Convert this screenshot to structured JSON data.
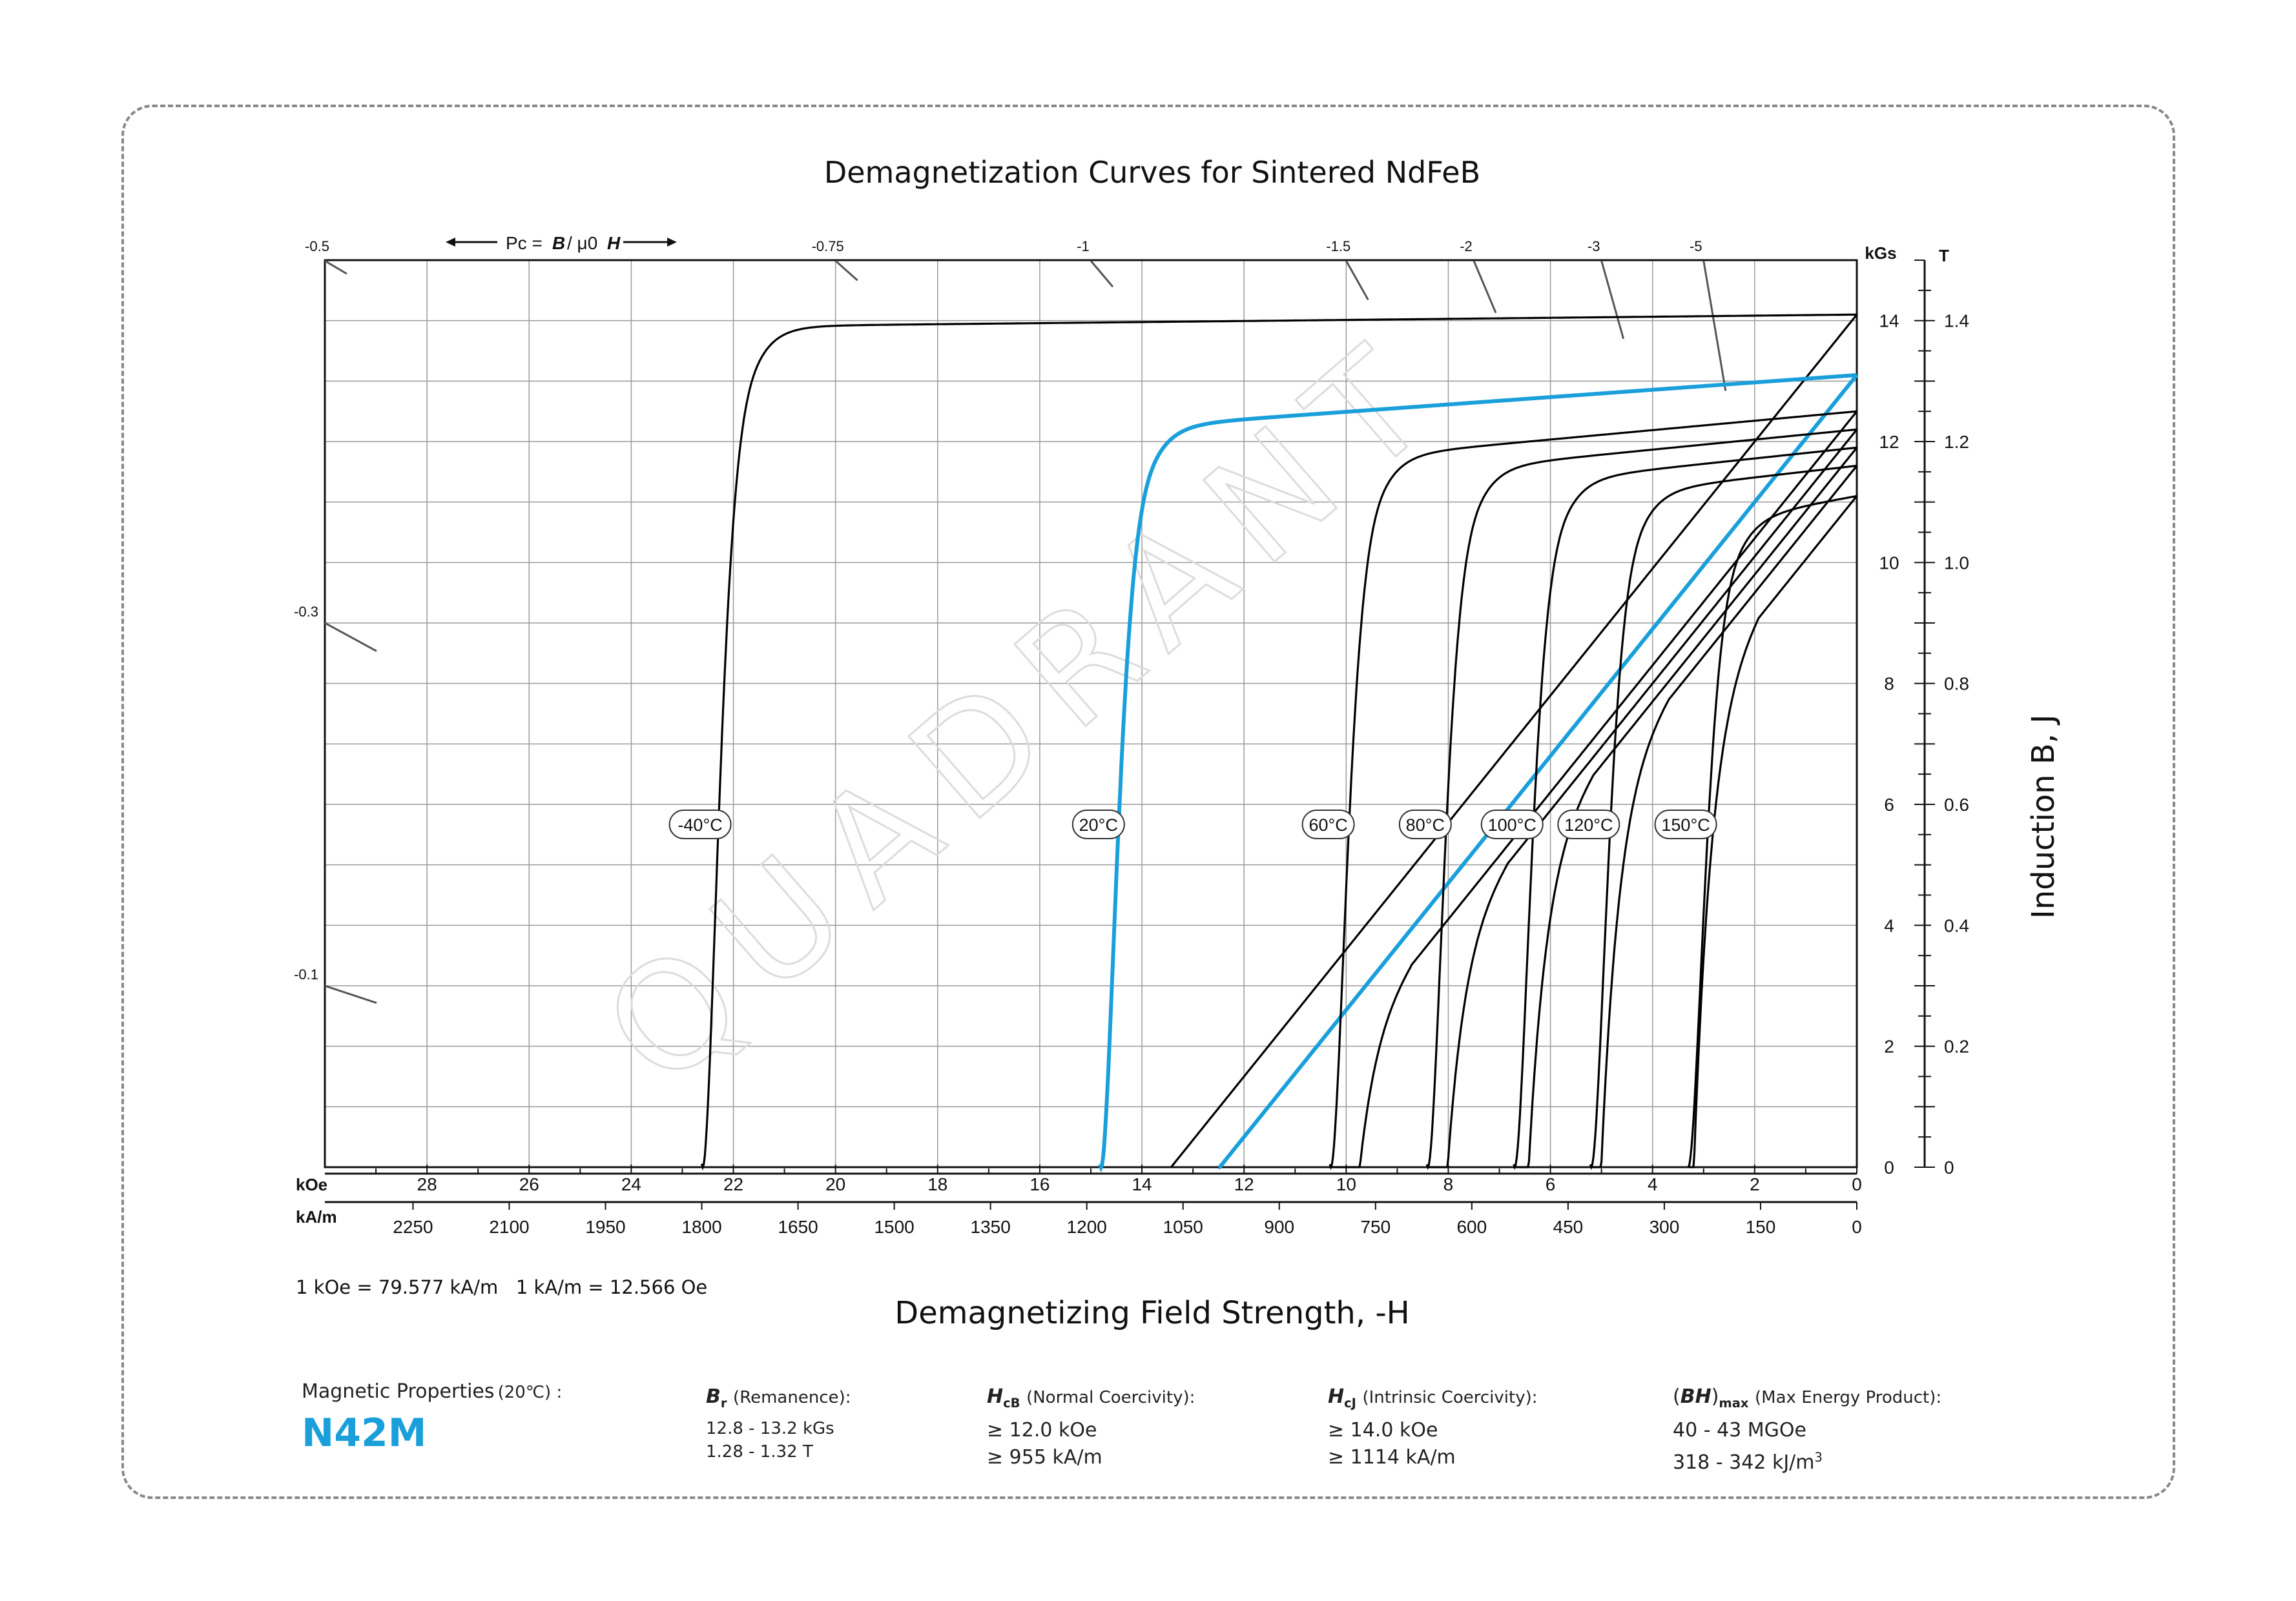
{
  "chart_data": {
    "type": "line",
    "title": "Demagnetization Curves for Sintered NdFeB",
    "xlabel": "Demagnetizing Field Strength, -H",
    "ylabel": "Induction  B,  J",
    "x_unit_primary": "kOe",
    "x_unit_secondary": "kA/m",
    "y_unit_primary": "kGs",
    "y_unit_secondary": "T",
    "xlim": [
      30,
      0
    ],
    "ylim": [
      0,
      15
    ],
    "x_ticks_koe": [
      "28",
      "26",
      "24",
      "22",
      "20",
      "18",
      "16",
      "14",
      "12",
      "10",
      "8",
      "6",
      "4",
      "2",
      "0"
    ],
    "x_ticks_kam": [
      "2250",
      "2100",
      "1950",
      "1800",
      "1650",
      "1500",
      "1350",
      "1200",
      "1050",
      "900",
      "750",
      "600",
      "450",
      "300",
      "150",
      "0"
    ],
    "y_ticks_kgs": [
      "0",
      "2",
      "4",
      "6",
      "8",
      "10",
      "12",
      "14"
    ],
    "y_ticks_t": [
      "0",
      "0.2",
      "0.4",
      "0.6",
      "0.8",
      "1.0",
      "1.2",
      "1.4"
    ],
    "conversion_note": "1 kOe = 79.577 kA/m   1 kA/m = 12.566 Oe",
    "permeance_label": "Pc =",
    "permeance_b": "B",
    "permeance_mid": "/ μ0",
    "permeance_h": "H",
    "permeance_ticks": [
      {
        "label": "-0.5",
        "pc": 0.5
      },
      {
        "label": "-0.75",
        "pc": 0.75
      },
      {
        "label": "-1",
        "pc": 1
      },
      {
        "label": "-1.5",
        "pc": 1.5
      },
      {
        "label": "-2",
        "pc": 2
      },
      {
        "label": "-3",
        "pc": 3
      },
      {
        "label": "-5",
        "pc": 5
      },
      {
        "label": "-0.3",
        "pc": 0.3
      },
      {
        "label": "-0.1",
        "pc": 0.1
      }
    ],
    "series": [
      {
        "name": "-40°C",
        "color": "#000000",
        "Br": 14.1,
        "HcB": null,
        "HcJ": 22.6,
        "J0": 13.9
      },
      {
        "name": "20°C",
        "color": "#1a9fdb",
        "Br": 13.1,
        "HcB": 12.5,
        "HcJ": 14.8,
        "J0": 12.2
      },
      {
        "name": "60°C",
        "color": "#000000",
        "Br": 12.5,
        "HcB": null,
        "HcJ": 10.3,
        "J0": 11.7
      },
      {
        "name": "80°C",
        "color": "#000000",
        "Br": 12.2,
        "HcB": null,
        "HcJ": 8.4,
        "J0": 11.5
      },
      {
        "name": "100°C",
        "color": "#000000",
        "Br": 11.9,
        "HcB": null,
        "HcJ": 6.7,
        "J0": 11.3
      },
      {
        "name": "120°C",
        "color": "#000000",
        "Br": 11.6,
        "HcB": null,
        "HcJ": 5.2,
        "J0": 11.1
      },
      {
        "name": "150°C",
        "color": "#000000",
        "Br": 11.1,
        "HcB": null,
        "HcJ": 3.3,
        "J0": 10.6
      }
    ],
    "grid": true,
    "watermark": "QUADRANT"
  },
  "properties": {
    "heading": "Magnetic Properties",
    "heading_temp": "(20℃) :",
    "grade": "N42M",
    "grade_color": "#1a9fdb",
    "br": {
      "sym": "B",
      "sub": "r",
      "label": "(Remanence):",
      "v1": "12.8 - 13.2 kGs",
      "v2": "1.28 - 1.32 T"
    },
    "hcb": {
      "sym": "H",
      "sub": "cB",
      "label": "(Normal Coercivity):",
      "v1": "≥ 12.0 kOe",
      "v2": "≥ 955 kA/m"
    },
    "hcj": {
      "sym": "H",
      "sub": "cJ",
      "label": "(Intrinsic Coercivity):",
      "v1": "≥ 14.0 kOe",
      "v2": "≥ 1114 kA/m"
    },
    "bh": {
      "sym": "BH",
      "sub": "max",
      "label": "(Max Energy Product):",
      "v1": "40 - 43 MGOe",
      "v2": "318 - 342 kJ/m",
      "v2_sup": "3"
    }
  }
}
